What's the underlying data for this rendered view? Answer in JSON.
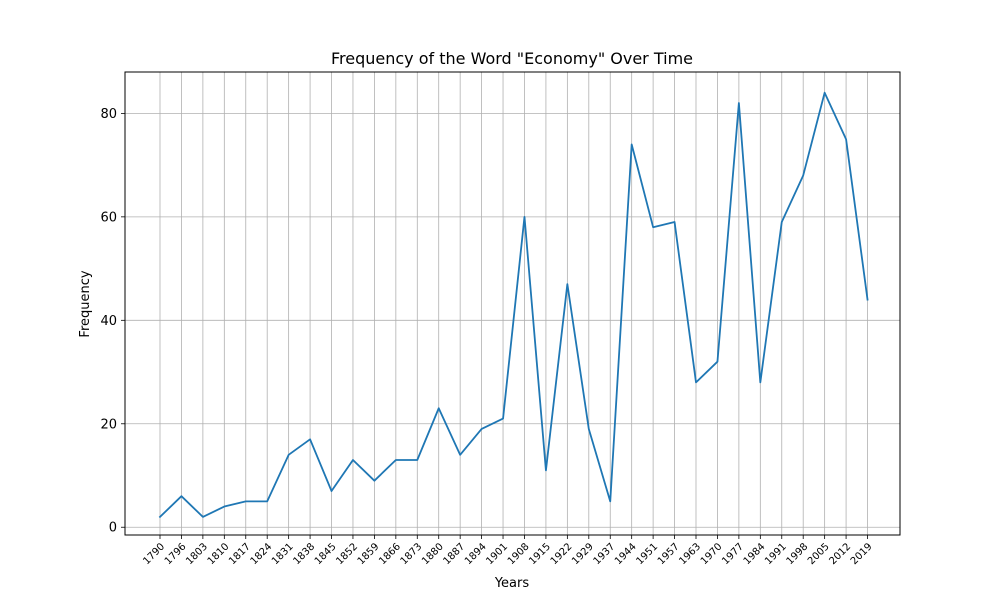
{
  "chart_data": {
    "type": "line",
    "title": "Frequency of the Word \"Economy\" Over Time",
    "xlabel": "Years",
    "ylabel": "Frequency",
    "categories": [
      "1790",
      "1796",
      "1803",
      "1810",
      "1817",
      "1824",
      "1831",
      "1838",
      "1845",
      "1852",
      "1859",
      "1866",
      "1873",
      "1880",
      "1887",
      "1894",
      "1901",
      "1908",
      "1915",
      "1922",
      "1929",
      "1937",
      "1944",
      "1951",
      "1957",
      "1963",
      "1970",
      "1977",
      "1984",
      "1991",
      "1998",
      "2005",
      "2012",
      "2019"
    ],
    "series": [
      {
        "values": [
          2,
          6,
          2,
          4,
          5,
          5,
          14,
          17,
          7,
          13,
          9,
          13,
          13,
          23,
          14,
          19,
          21,
          60,
          11,
          47,
          19,
          5,
          74,
          58,
          59,
          28,
          32,
          82,
          28,
          59,
          68,
          84,
          75,
          44
        ],
        "color": "#1f77b4"
      }
    ],
    "ylim": [
      -1.5,
      88
    ],
    "yticks": [
      0,
      20,
      40,
      60,
      80
    ],
    "grid": true,
    "legend": "none"
  }
}
